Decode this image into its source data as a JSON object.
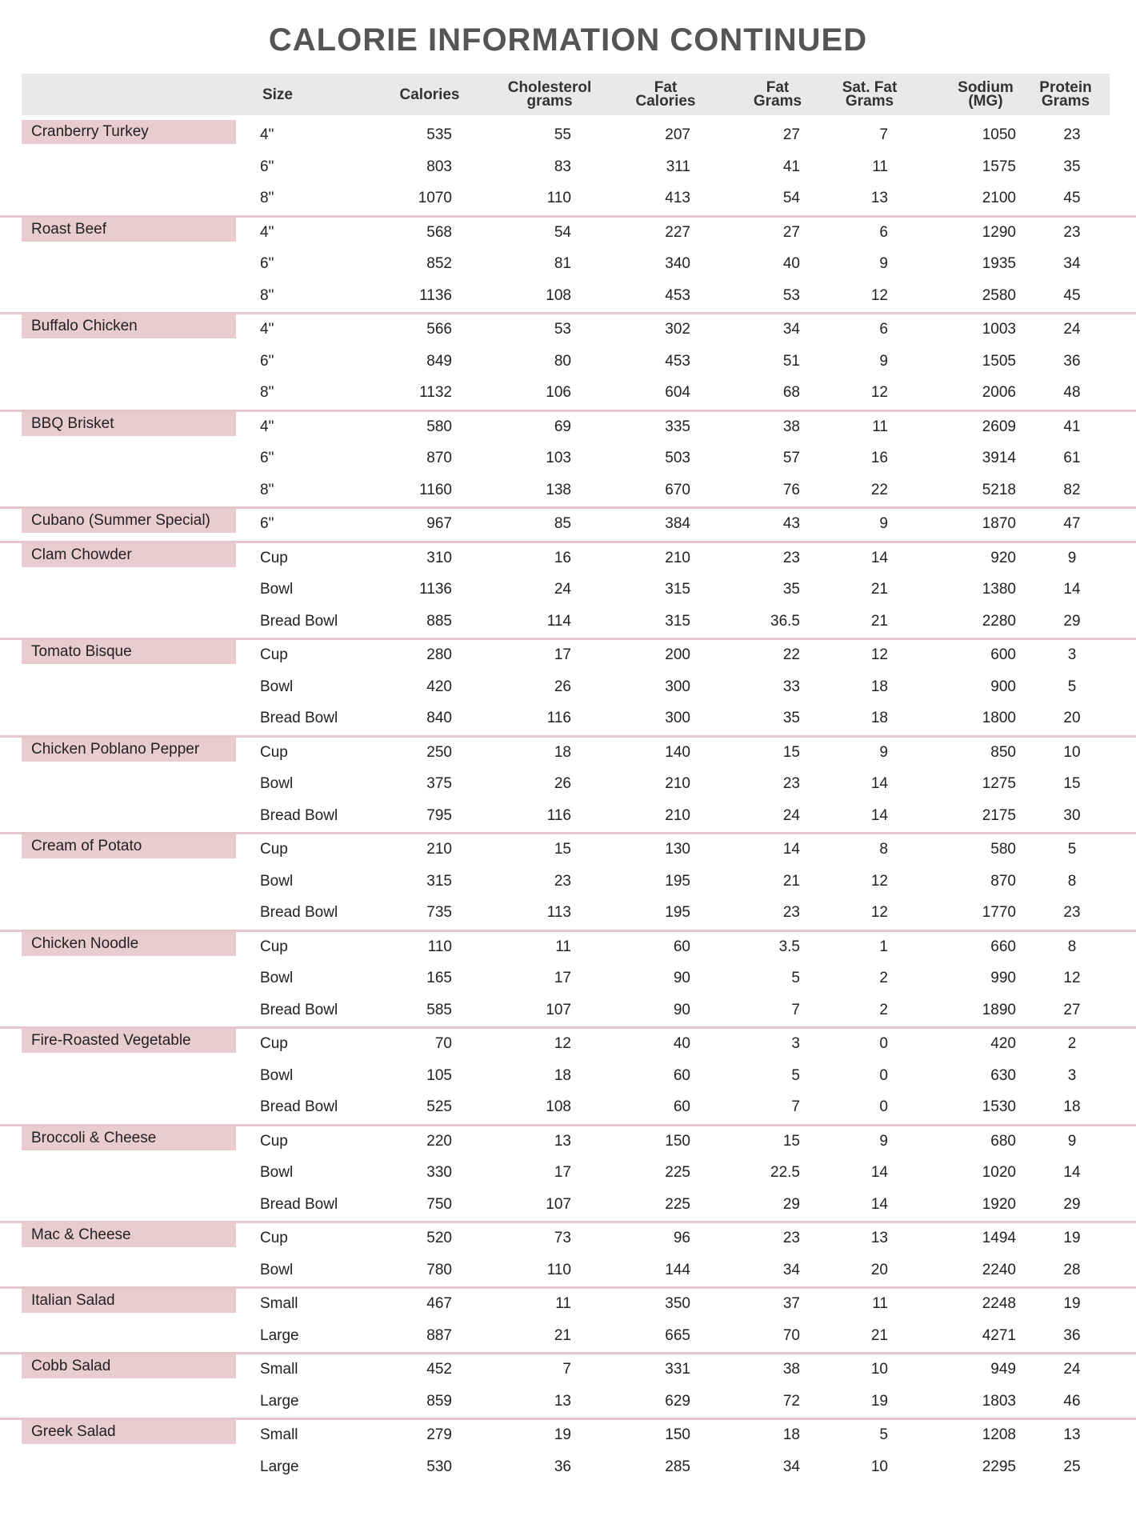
{
  "title": "CALORIE INFORMATION CONTINUED",
  "colors": {
    "name_band": "#e9ccd2",
    "divider": "#e6c6cd",
    "header_bg": "#e9e9e9",
    "title": "#555555"
  },
  "columns": [
    "Size",
    "Calories",
    "Cholesterol grams",
    "Fat Calories",
    "Fat Grams",
    "Sat. Fat Grams",
    "Sodium (MG)",
    "Protein Grams"
  ],
  "items": [
    {
      "name": "Cranberry Turkey",
      "rows": [
        [
          "4\"",
          "535",
          "55",
          "207",
          "27",
          "7",
          "1050",
          "23"
        ],
        [
          "6\"",
          "803",
          "83",
          "311",
          "41",
          "11",
          "1575",
          "35"
        ],
        [
          "8\"",
          "1070",
          "110",
          "413",
          "54",
          "13",
          "2100",
          "45"
        ]
      ]
    },
    {
      "name": "Roast Beef",
      "rows": [
        [
          "4\"",
          "568",
          "54",
          "227",
          "27",
          "6",
          "1290",
          "23"
        ],
        [
          "6\"",
          "852",
          "81",
          "340",
          "40",
          "9",
          "1935",
          "34"
        ],
        [
          "8\"",
          "1136",
          "108",
          "453",
          "53",
          "12",
          "2580",
          "45"
        ]
      ]
    },
    {
      "name": "Buffalo Chicken",
      "rows": [
        [
          "4\"",
          "566",
          "53",
          "302",
          "34",
          "6",
          "1003",
          "24"
        ],
        [
          "6\"",
          "849",
          "80",
          "453",
          "51",
          "9",
          "1505",
          "36"
        ],
        [
          "8\"",
          "1132",
          "106",
          "604",
          "68",
          "12",
          "2006",
          "48"
        ]
      ]
    },
    {
      "name": "BBQ Brisket",
      "rows": [
        [
          "4\"",
          "580",
          "69",
          "335",
          "38",
          "11",
          "2609",
          "41"
        ],
        [
          "6\"",
          "870",
          "103",
          "503",
          "57",
          "16",
          "3914",
          "61"
        ],
        [
          "8\"",
          "1160",
          "138",
          "670",
          "76",
          "22",
          "5218",
          "82"
        ]
      ]
    },
    {
      "name": "Cubano (Summer Special)",
      "rows": [
        [
          "6\"",
          "967",
          "85",
          "384",
          "43",
          "9",
          "1870",
          "47"
        ]
      ]
    },
    {
      "name": "Clam Chowder",
      "rows": [
        [
          "Cup",
          "310",
          "16",
          "210",
          "23",
          "14",
          "920",
          "9"
        ],
        [
          "Bowl",
          "1136",
          "24",
          "315",
          "35",
          "21",
          "1380",
          "14"
        ],
        [
          "Bread Bowl",
          "885",
          "114",
          "315",
          "36.5",
          "21",
          "2280",
          "29"
        ]
      ]
    },
    {
      "name": "Tomato Bisque",
      "rows": [
        [
          "Cup",
          "280",
          "17",
          "200",
          "22",
          "12",
          "600",
          "3"
        ],
        [
          "Bowl",
          "420",
          "26",
          "300",
          "33",
          "18",
          "900",
          "5"
        ],
        [
          "Bread Bowl",
          "840",
          "116",
          "300",
          "35",
          "18",
          "1800",
          "20"
        ]
      ]
    },
    {
      "name": "Chicken Poblano Pepper",
      "rows": [
        [
          "Cup",
          "250",
          "18",
          "140",
          "15",
          "9",
          "850",
          "10"
        ],
        [
          "Bowl",
          "375",
          "26",
          "210",
          "23",
          "14",
          "1275",
          "15"
        ],
        [
          "Bread Bowl",
          "795",
          "116",
          "210",
          "24",
          "14",
          "2175",
          "30"
        ]
      ]
    },
    {
      "name": "Cream of Potato",
      "rows": [
        [
          "Cup",
          "210",
          "15",
          "130",
          "14",
          "8",
          "580",
          "5"
        ],
        [
          "Bowl",
          "315",
          "23",
          "195",
          "21",
          "12",
          "870",
          "8"
        ],
        [
          "Bread Bowl",
          "735",
          "113",
          "195",
          "23",
          "12",
          "1770",
          "23"
        ]
      ]
    },
    {
      "name": "Chicken Noodle",
      "rows": [
        [
          "Cup",
          "110",
          "11",
          "60",
          "3.5",
          "1",
          "660",
          "8"
        ],
        [
          "Bowl",
          "165",
          "17",
          "90",
          "5",
          "2",
          "990",
          "12"
        ],
        [
          "Bread Bowl",
          "585",
          "107",
          "90",
          "7",
          "2",
          "1890",
          "27"
        ]
      ]
    },
    {
      "name": "Fire-Roasted Vegetable",
      "rows": [
        [
          "Cup",
          "70",
          "12",
          "40",
          "3",
          "0",
          "420",
          "2"
        ],
        [
          "Bowl",
          "105",
          "18",
          "60",
          "5",
          "0",
          "630",
          "3"
        ],
        [
          "Bread Bowl",
          "525",
          "108",
          "60",
          "7",
          "0",
          "1530",
          "18"
        ]
      ]
    },
    {
      "name": "Broccoli & Cheese",
      "rows": [
        [
          "Cup",
          "220",
          "13",
          "150",
          "15",
          "9",
          "680",
          "9"
        ],
        [
          "Bowl",
          "330",
          "17",
          "225",
          "22.5",
          "14",
          "1020",
          "14"
        ],
        [
          "Bread Bowl",
          "750",
          "107",
          "225",
          "29",
          "14",
          "1920",
          "29"
        ]
      ]
    },
    {
      "name": "Mac & Cheese",
      "rows": [
        [
          "Cup",
          "520",
          "73",
          "96",
          "23",
          "13",
          "1494",
          "19"
        ],
        [
          "Bowl",
          "780",
          "110",
          "144",
          "34",
          "20",
          "2240",
          "28"
        ]
      ]
    },
    {
      "name": "Italian Salad",
      "rows": [
        [
          "Small",
          "467",
          "11",
          "350",
          "37",
          "11",
          "2248",
          "19"
        ],
        [
          "Large",
          "887",
          "21",
          "665",
          "70",
          "21",
          "4271",
          "36"
        ]
      ]
    },
    {
      "name": "Cobb Salad",
      "rows": [
        [
          "Small",
          "452",
          "7",
          "331",
          "38",
          "10",
          "949",
          "24"
        ],
        [
          "Large",
          "859",
          "13",
          "629",
          "72",
          "19",
          "1803",
          "46"
        ]
      ]
    },
    {
      "name": "Greek Salad",
      "rows": [
        [
          "Small",
          "279",
          "19",
          "150",
          "18",
          "5",
          "1208",
          "13"
        ],
        [
          "Large",
          "530",
          "36",
          "285",
          "34",
          "10",
          "2295",
          "25"
        ]
      ]
    }
  ]
}
